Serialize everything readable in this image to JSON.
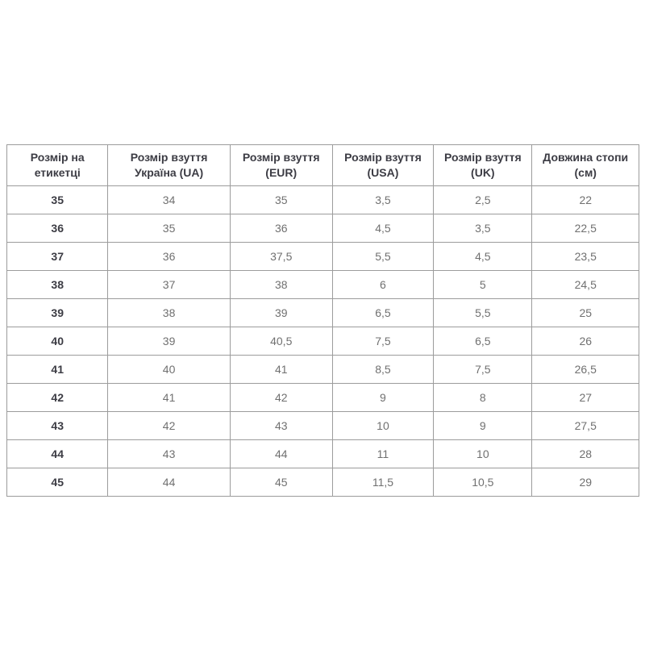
{
  "colors": {
    "background": "#ffffff",
    "table_border": "#9c9c9c",
    "header_text": "#3c3c44",
    "label_text": "#3c3c44",
    "value_text": "#707070"
  },
  "table": {
    "columns": [
      "Розмір на етикетці",
      "Розмір взуття Україна (UA)",
      "Розмір взуття (EUR)",
      "Розмір взуття (USA)",
      "Розмір взуття (UK)",
      "Довжина стопи (см)"
    ],
    "rows": [
      [
        "35",
        "34",
        "35",
        "3,5",
        "2,5",
        "22"
      ],
      [
        "36",
        "35",
        "36",
        "4,5",
        "3,5",
        "22,5"
      ],
      [
        "37",
        "36",
        "37,5",
        "5,5",
        "4,5",
        "23,5"
      ],
      [
        "38",
        "37",
        "38",
        "6",
        "5",
        "24,5"
      ],
      [
        "39",
        "38",
        "39",
        "6,5",
        "5,5",
        "25"
      ],
      [
        "40",
        "39",
        "40,5",
        "7,5",
        "6,5",
        "26"
      ],
      [
        "41",
        "40",
        "41",
        "8,5",
        "7,5",
        "26,5"
      ],
      [
        "42",
        "41",
        "42",
        "9",
        "8",
        "27"
      ],
      [
        "43",
        "42",
        "43",
        "10",
        "9",
        "27,5"
      ],
      [
        "44",
        "43",
        "44",
        "11",
        "10",
        "28"
      ],
      [
        "45",
        "44",
        "45",
        "11,5",
        "10,5",
        "29"
      ]
    ]
  }
}
